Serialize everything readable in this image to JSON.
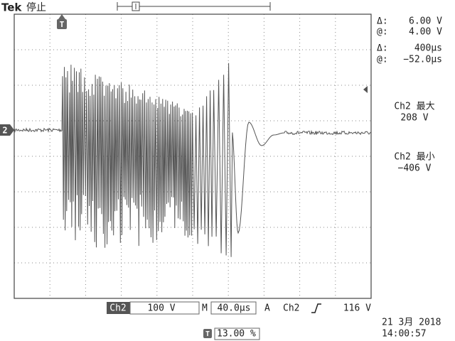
{
  "header": {
    "brand": "Tek",
    "status": "停止"
  },
  "trigger_marker": "T",
  "channel_marker": "2",
  "cursors": [
    {
      "label": "Δ:",
      "value": "6.00 V"
    },
    {
      "label": "@:",
      "value": "4.00 V"
    },
    {
      "label": "Δ:",
      "value": "400μs"
    },
    {
      "label": "@:",
      "value": "−52.0μs"
    }
  ],
  "measurements": [
    {
      "label": "Ch2 最大",
      "value": "208 V"
    },
    {
      "label": "Ch2 最小",
      "value": "−406 V"
    }
  ],
  "status_bar": {
    "channel": "Ch2",
    "scale": "100 V",
    "timebase_label": "M",
    "timebase": "40.0μs",
    "trigger_mode": "A",
    "trigger_source": "Ch2",
    "trigger_level": "116 V"
  },
  "datetime": {
    "date": "21 3月 2018",
    "time": "14:00:57"
  },
  "trigger_position": {
    "icon": "T",
    "value": "13.00 %"
  }
}
